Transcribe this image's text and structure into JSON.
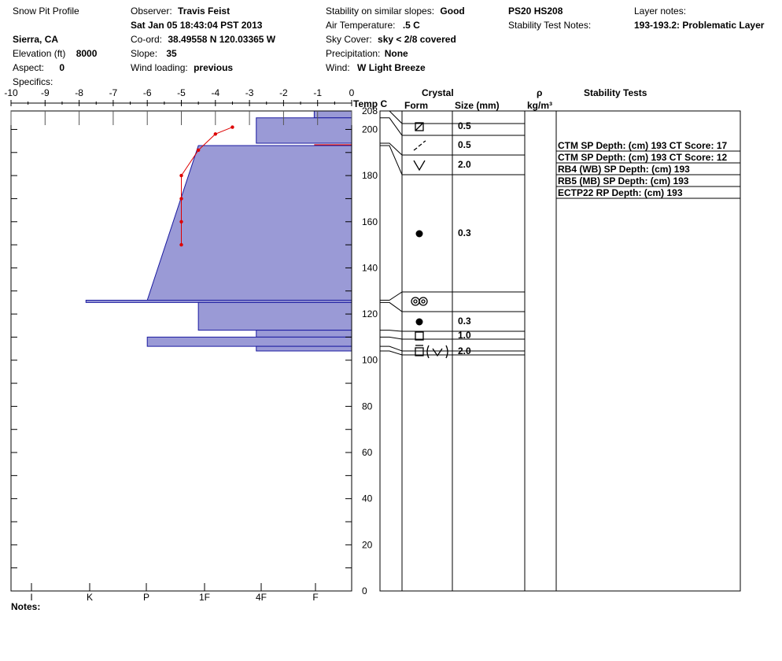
{
  "header": {
    "title": "Snow Pit Profile",
    "location": "Sierra, CA",
    "elevation_label": "Elevation (ft)",
    "elevation": "8000",
    "aspect_label": "Aspect:",
    "aspect": "0",
    "specifics_label": "Specifics:",
    "observer_label": "Observer:",
    "observer": "Travis Feist",
    "datetime": "Sat Jan 05 18:43:04 PST 2013",
    "coord_label": "Co-ord:",
    "coord": "38.49558 N 120.03365 W",
    "slope_label": "Slope:",
    "slope": "35",
    "wind_loading_label": "Wind loading:",
    "wind_loading": "previous",
    "stability_label": "Stability on similar slopes:",
    "stability": "Good",
    "air_temp_label": "Air Temperature:",
    "air_temp": ".5 C",
    "sky_label": "Sky Cover:",
    "sky": "sky < 2/8 covered",
    "precip_label": "Precipitation:",
    "precip": "None",
    "wind_label": "Wind:",
    "wind": "W Light Breeze",
    "ps": "PS20 HS208",
    "stability_notes_label": "Stability Test Notes:",
    "layer_notes_label": "Layer notes:",
    "layer_notes": "193-193.2: Problematic Layer",
    "notes_label": "Notes:"
  },
  "columns": {
    "temp": "Temp C",
    "crystal": "Crystal",
    "form": "Form",
    "size": "Size (mm)",
    "rho": "ρ",
    "rho_unit": "kg/m³",
    "stability_tests": "Stability Tests"
  },
  "chart_data": {
    "type": "snow_profile",
    "temp_axis": {
      "range": [
        -10,
        0
      ],
      "ticks": [
        "-10",
        "-9",
        "-8",
        "-7",
        "-6",
        "-5",
        "-4",
        "-3",
        "-2",
        "-1",
        "0"
      ]
    },
    "height_axis": {
      "range": [
        0,
        208
      ],
      "ticks": [
        "0",
        "20",
        "40",
        "60",
        "80",
        "100",
        "120",
        "140",
        "160",
        "180",
        "200",
        "208"
      ]
    },
    "hardness_axis": {
      "ticks": [
        "I",
        "K",
        "P",
        "1F",
        "4F",
        "F"
      ]
    },
    "temperature_profile": [
      {
        "h": 201,
        "t": -3.5
      },
      {
        "h": 198,
        "t": -4.0
      },
      {
        "h": 191,
        "t": -4.5
      },
      {
        "h": 180,
        "t": -5.0
      },
      {
        "h": 170,
        "t": -5.0
      },
      {
        "h": 160,
        "t": -5.0
      },
      {
        "h": 150,
        "t": -5.0
      }
    ],
    "hardness_layers": [
      {
        "top": 208,
        "bottom": 205,
        "left_top": -1.1,
        "left_bottom": -1.1
      },
      {
        "top": 205,
        "bottom": 194,
        "left_top": -2.8,
        "left_bottom": -2.8
      },
      {
        "top": 193.2,
        "bottom": 193,
        "left_top": -1.1,
        "left_bottom": -1.1,
        "weak": true
      },
      {
        "top": 193,
        "bottom": 126,
        "left_top": -4.5,
        "left_bottom": -6.0
      },
      {
        "top": 126,
        "bottom": 125,
        "left_top": -7.8,
        "left_bottom": -7.8
      },
      {
        "top": 125,
        "bottom": 113,
        "left_top": -4.5,
        "left_bottom": -4.5
      },
      {
        "top": 113,
        "bottom": 110,
        "left_top": -2.8,
        "left_bottom": -2.8
      },
      {
        "top": 110,
        "bottom": 106,
        "left_top": -6.0,
        "left_bottom": -6.0
      },
      {
        "top": 106,
        "bottom": 104,
        "left_top": -2.8,
        "left_bottom": -2.8
      }
    ],
    "layer_boundaries": [
      208,
      205,
      194,
      193,
      126,
      125,
      113,
      110,
      106,
      104,
      0
    ],
    "crystals": [
      {
        "h": 203,
        "form": "faceted-rounded",
        "size": "0.5"
      },
      {
        "h": 195,
        "form": "decomposing",
        "size": "0.5"
      },
      {
        "h": 186,
        "form": "depth-hoar",
        "size": "2.0"
      },
      {
        "h": 157,
        "form": "rounded",
        "size": "0.3"
      },
      {
        "h": 127,
        "form": "melt-forms",
        "size": ""
      },
      {
        "h": 118,
        "form": "rounded",
        "size": "0.3"
      },
      {
        "h": 111,
        "form": "faceted",
        "size": "1.0"
      },
      {
        "h": 105,
        "form": "faceted-depth-hoar",
        "size": "2.0"
      }
    ],
    "stability_tests": [
      "CTM SP Depth: (cm) 193 CT Score: 17",
      "CTM SP Depth: (cm) 193 CT Score: 12",
      "RB4 (WB) SP Depth: (cm) 193",
      "RB5 (MB) SP Depth: (cm) 193",
      "ECTP22 RP Depth: (cm) 193"
    ]
  }
}
